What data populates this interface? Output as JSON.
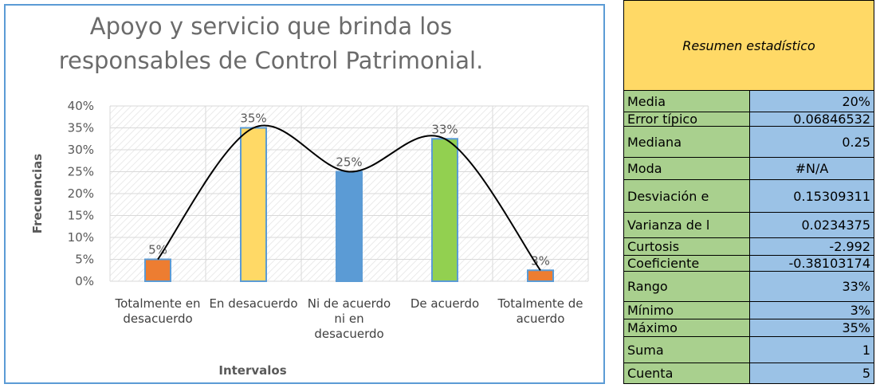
{
  "chart_data": {
    "type": "bar",
    "title": "Apoyo y servicio que brinda los responsables de Control Patrimonial.",
    "x_label": "Intervalos",
    "y_label": "Frecuencias",
    "categories": [
      "Totalmente en desacuerdo",
      "En desacuerdo",
      "Ni de acuerdo ni en desacuerdo",
      "De acuerdo",
      "Totalmente de acuerdo"
    ],
    "values": [
      5,
      35,
      25,
      32.5,
      2.5
    ],
    "value_labels": [
      "5%",
      "35%",
      "25%",
      "33%",
      "3%"
    ],
    "colors": [
      "#ed7d31",
      "#ffd966",
      "#5b9bd5",
      "#92d050",
      "#ed7d31"
    ],
    "trend_line": true,
    "ylim": [
      0,
      40
    ],
    "yticks": [
      {
        "value": 0,
        "label": "0%"
      },
      {
        "value": 5,
        "label": "5%"
      },
      {
        "value": 10,
        "label": "10%"
      },
      {
        "value": 15,
        "label": "15%"
      },
      {
        "value": 20,
        "label": "20%"
      },
      {
        "value": 25,
        "label": "25%"
      },
      {
        "value": 30,
        "label": "30%"
      },
      {
        "value": 35,
        "label": "35%"
      },
      {
        "value": 40,
        "label": "40%"
      }
    ],
    "grid": true
  },
  "table": {
    "title": "Resumen estadístico",
    "rows": [
      [
        "Media",
        "20%"
      ],
      [
        "Error típico",
        "0.06846532"
      ],
      [
        "Mediana",
        "0.25"
      ],
      [
        "Moda",
        "#N/A"
      ],
      [
        "Desviación e",
        "0.15309311"
      ],
      [
        "Varianza de l",
        "0.0234375"
      ],
      [
        "Curtosis",
        "-2.992"
      ],
      [
        "Coeficiente",
        "-0.38103174"
      ],
      [
        "Rango",
        "33%"
      ],
      [
        "Mínimo",
        "3%"
      ],
      [
        "Máximo",
        "35%"
      ],
      [
        "Suma",
        "1"
      ],
      [
        "Cuenta",
        "5"
      ]
    ]
  }
}
